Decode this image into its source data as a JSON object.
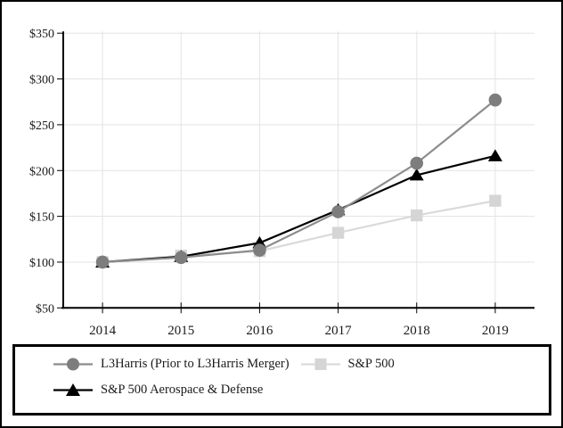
{
  "chart_data": {
    "type": "line",
    "title": "",
    "xlabel": "",
    "ylabel": "",
    "x": [
      "2014",
      "2015",
      "2016",
      "2017",
      "2018",
      "2019"
    ],
    "y_tick_labels": [
      "$350",
      "$300",
      "$250",
      "$200",
      "$150",
      "$100",
      "$50"
    ],
    "ylim": [
      50,
      350
    ],
    "grid": true,
    "grid_color": "#e3e3e3",
    "axis_color": "#000000",
    "text_color": "#1a1a1a",
    "legend_position": "bottom-box",
    "legend_rows": [
      [
        0,
        1
      ],
      [
        2
      ]
    ],
    "draw_order": [
      1,
      2,
      0
    ],
    "series": [
      {
        "name": "L3Harris (Prior to L3Harris Merger)",
        "marker": "circle",
        "marker_color": "#7d7d7d",
        "line_color": "#8c8c8c",
        "values": [
          100,
          105,
          113,
          155,
          208,
          277
        ]
      },
      {
        "name": "S&P 500",
        "marker": "square",
        "marker_color": "#d5d5d5",
        "line_color": "#dadada",
        "values": [
          100,
          107,
          112,
          132,
          151,
          167
        ]
      },
      {
        "name": "S&P 500 Aerospace & Defense",
        "marker": "triangle",
        "marker_color": "#000000",
        "line_color": "#000000",
        "values": [
          100,
          106,
          121,
          157,
          195,
          216
        ]
      }
    ]
  }
}
